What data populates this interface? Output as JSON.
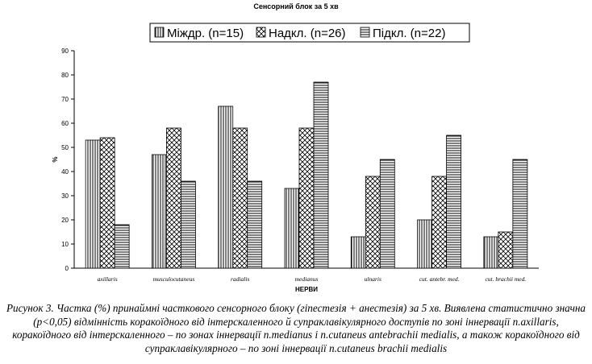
{
  "chart_data": {
    "type": "bar",
    "title": "Сенсорний блок за 5 хв",
    "xlabel": "НЕРВИ",
    "ylabel": "%",
    "ylim": [
      0,
      90
    ],
    "yticks": [
      0,
      10,
      20,
      30,
      40,
      50,
      60,
      70,
      80,
      90
    ],
    "categories": [
      "axillaris",
      "musculocutaneus",
      "radialis",
      "medianus",
      "ulnaris",
      "cut. antebr. med.",
      "cut. brachii med."
    ],
    "series": [
      {
        "name": "Міждр. (n=15)",
        "pattern": "vertical-lines",
        "values": [
          53,
          47,
          67,
          33,
          13,
          20,
          13
        ]
      },
      {
        "name": "Надкл. (n=26)",
        "pattern": "crosshatch",
        "values": [
          54,
          58,
          58,
          58,
          38,
          38,
          15
        ]
      },
      {
        "name": "Підкл. (n=22)",
        "pattern": "horizontal-lines",
        "values": [
          18,
          36,
          36,
          77,
          45,
          55,
          45
        ]
      }
    ],
    "legend_position": "top",
    "grid": false
  },
  "caption": "Рисунок 3. Частка (%) принаймні часткового сенсорного блоку (гіпестезія + анестезія) за 5 хв. Виявлена статистично значна (p<0,05) відмінність коракоїдного від інтерскаленного й супраклавікулярного доступів по зоні іннервації n.axillaris, коракоїдного від інтерскаленного – по зонах іннервації n.medianus і n.cutaneus antebrachii medialis, а також коракоїдного від супраклавікулярного – по зоні іннервації n.cutaneus brachii medialis"
}
